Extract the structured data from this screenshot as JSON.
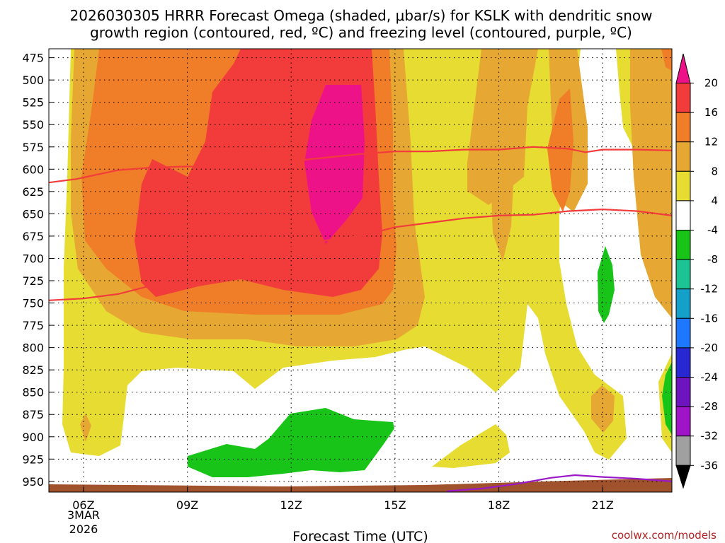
{
  "chart_data": {
    "type": "time-height contour",
    "title": "2026030305 HRRR Forecast Omega (shaded, μbar/s) for KSLK with dendritic snow",
    "title_line2": "growth region (contoured, red, ºC) and freezing level (contoured, purple, ºC)",
    "xlabel": "Forecast Time (UTC)",
    "ylabel": "",
    "x_ticks": [
      "06Z",
      "09Z",
      "12Z",
      "15Z",
      "18Z",
      "21Z"
    ],
    "x_tick_hours": [
      6,
      9,
      12,
      15,
      18,
      21
    ],
    "x_date_line1": "3MAR",
    "x_date_line2": "2026",
    "xlim": [
      5,
      23
    ],
    "y_ticks": [
      "475",
      "500",
      "525",
      "550",
      "575",
      "600",
      "625",
      "650",
      "675",
      "700",
      "725",
      "750",
      "775",
      "800",
      "825",
      "850",
      "875",
      "900",
      "925",
      "950"
    ],
    "y_tick_values": [
      475,
      500,
      525,
      550,
      575,
      600,
      625,
      650,
      675,
      700,
      725,
      750,
      775,
      800,
      825,
      850,
      875,
      900,
      925,
      950
    ],
    "ylim": [
      465,
      962
    ],
    "colorbar_labels": [
      "20",
      "16",
      "12",
      "8",
      "4",
      "-4",
      "-8",
      "-12",
      "-16",
      "-20",
      "-24",
      "-28",
      "-32",
      "-36"
    ],
    "colorbar_colors": [
      "#ee1289",
      "#f23c3c",
      "#f07d28",
      "#e6a832",
      "#e6dc32",
      "#ffffff",
      "#18c418",
      "#1ec393",
      "#14a0c8",
      "#1e78ff",
      "#2828d2",
      "#6e14be",
      "#a014c8",
      "#a0a0a0"
    ],
    "shade_levels": [
      4,
      8,
      12,
      16,
      20
    ],
    "fill_colors": {
      "yellow": "#e6dc32",
      "gold": "#e6a832",
      "orange": "#f07d28",
      "red": "#f23c3c",
      "magenta": "#ee1289",
      "green": "#18c418",
      "terrain": "#a0522d"
    },
    "dgz_color": "#f23c3c",
    "freezing_color": "#9b18c8",
    "dgz_upper_boundary": [
      [
        5,
        615
      ],
      [
        5.8,
        611
      ],
      [
        7,
        601
      ],
      [
        8,
        598
      ],
      [
        9,
        597
      ],
      [
        10,
        597
      ],
      [
        11,
        597
      ],
      [
        12,
        591
      ],
      [
        13,
        587
      ],
      [
        14,
        583
      ],
      [
        15,
        580
      ],
      [
        16,
        580
      ],
      [
        17,
        578
      ],
      [
        18,
        578
      ],
      [
        19,
        575
      ],
      [
        20,
        577
      ],
      [
        20.5,
        581
      ],
      [
        21,
        578
      ],
      [
        22,
        578
      ],
      [
        23,
        579
      ]
    ],
    "dgz_lower_boundary": [
      [
        5,
        747
      ],
      [
        6,
        745
      ],
      [
        7,
        740
      ],
      [
        8,
        730
      ],
      [
        9,
        717
      ],
      [
        10,
        712
      ],
      [
        11,
        696
      ],
      [
        12,
        688
      ],
      [
        13,
        680
      ],
      [
        14,
        675
      ],
      [
        15,
        665
      ],
      [
        16,
        660
      ],
      [
        17,
        655
      ],
      [
        18,
        652
      ],
      [
        19,
        651
      ],
      [
        20,
        647
      ],
      [
        21,
        645
      ],
      [
        22,
        647
      ],
      [
        23,
        652
      ]
    ],
    "freezing_level": [
      [
        16.5,
        961
      ],
      [
        17.5,
        958
      ],
      [
        18.5,
        953
      ],
      [
        19.5,
        946
      ],
      [
        20.2,
        943
      ],
      [
        21,
        945
      ],
      [
        22,
        947
      ],
      [
        23,
        950
      ]
    ],
    "colorbar_credit": "coolwx.com/models"
  }
}
